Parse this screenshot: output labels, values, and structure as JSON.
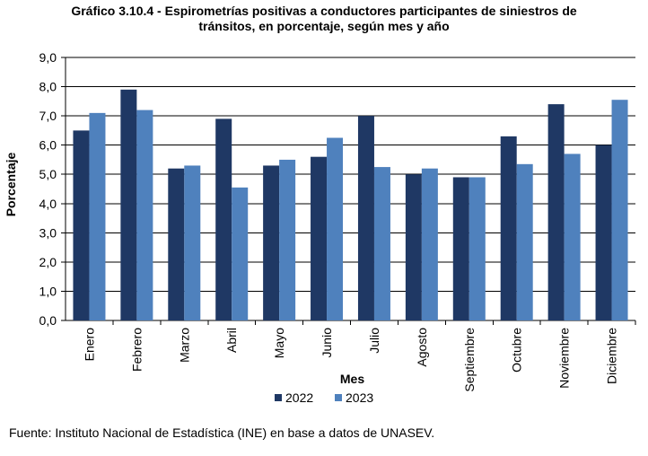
{
  "chart_data": {
    "type": "bar",
    "title_lines": [
      "Gráfico 3.10.4 - Espirometrías positivas a conductores participantes de siniestros de",
      "tránsitos, en porcentaje, según mes y año"
    ],
    "xlabel": "Mes",
    "ylabel": "Porcentaje",
    "ylim": [
      0,
      9
    ],
    "yticks": [
      "0,0",
      "1,0",
      "2,0",
      "3,0",
      "4,0",
      "5,0",
      "6,0",
      "7,0",
      "8,0",
      "9,0"
    ],
    "grid": true,
    "legend_position": "bottom",
    "categories": [
      "Enero",
      "Febrero",
      "Marzo",
      "Abril",
      "Mayo",
      "Junio",
      "Julio",
      "Agosto",
      "Septiembre",
      "Octubre",
      "Noviembre",
      "Diciembre"
    ],
    "series": [
      {
        "name": "2022",
        "color": "#1f3864",
        "values": [
          6.5,
          7.9,
          5.2,
          6.9,
          5.3,
          5.6,
          7.0,
          5.0,
          4.9,
          6.3,
          7.4,
          6.0
        ]
      },
      {
        "name": "2023",
        "color": "#4f81bd",
        "values": [
          7.1,
          7.2,
          5.3,
          4.55,
          5.5,
          6.25,
          5.25,
          5.2,
          4.9,
          5.35,
          5.7,
          7.55
        ]
      }
    ]
  },
  "source": "Fuente: Instituto Nacional de Estadística (INE) en base a datos de UNASEV."
}
